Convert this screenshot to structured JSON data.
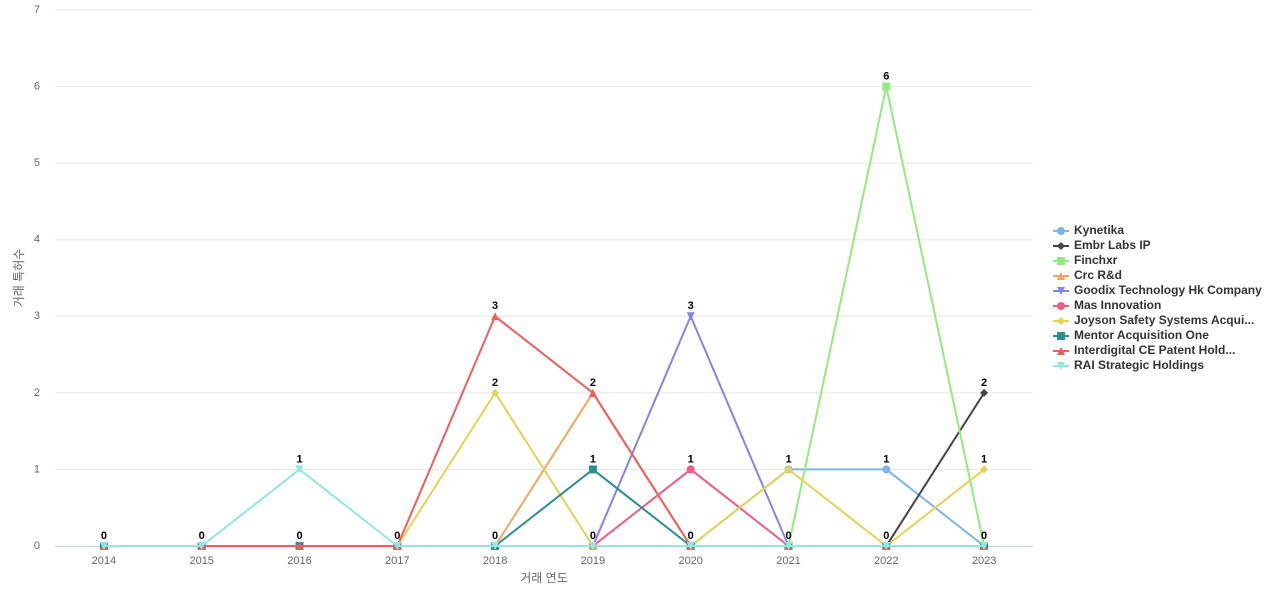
{
  "chart_data": {
    "type": "line",
    "x_label": "거래 연도",
    "y_label": "거래 특허수",
    "categories": [
      "2014",
      "2015",
      "2016",
      "2017",
      "2018",
      "2019",
      "2020",
      "2021",
      "2022",
      "2023"
    ],
    "ylim": [
      0,
      7
    ],
    "yticks": [
      0,
      1,
      2,
      3,
      4,
      5,
      6,
      7
    ],
    "grid": true,
    "legend": "right",
    "series": [
      {
        "name": "Kynetika",
        "color": "#7cb5ec",
        "values": [
          0,
          0,
          0,
          0,
          0,
          0,
          0,
          1,
          1,
          0
        ]
      },
      {
        "name": "Embr Labs IP",
        "color": "#434348",
        "values": [
          0,
          0,
          0,
          0,
          0,
          0,
          0,
          0,
          0,
          2
        ]
      },
      {
        "name": "Finchxr",
        "color": "#90ed7d",
        "values": [
          0,
          0,
          0,
          0,
          0,
          0,
          0,
          0,
          6,
          0
        ]
      },
      {
        "name": "Crc R&d",
        "color": "#f7a35c",
        "values": [
          0,
          0,
          0,
          0,
          0,
          2,
          0,
          0,
          0,
          0
        ]
      },
      {
        "name": "Goodix Technology Hk Company",
        "color": "#8085e9",
        "values": [
          0,
          0,
          0,
          0,
          0,
          0,
          3,
          0,
          0,
          0
        ]
      },
      {
        "name": "Mas Innovation",
        "color": "#f15c80",
        "values": [
          0,
          0,
          0,
          0,
          0,
          0,
          1,
          0,
          0,
          0
        ]
      },
      {
        "name": "Joyson Safety Systems Acqui...",
        "color": "#e4d354",
        "values": [
          0,
          0,
          0,
          0,
          2,
          0,
          0,
          1,
          0,
          1
        ]
      },
      {
        "name": "Mentor Acquisition One",
        "color": "#2b908f",
        "values": [
          0,
          0,
          0,
          0,
          0,
          1,
          0,
          0,
          0,
          0
        ]
      },
      {
        "name": "Interdigital CE Patent Hold...",
        "color": "#f45b5b",
        "values": [
          0,
          0,
          0,
          0,
          3,
          2,
          0,
          0,
          0,
          0
        ]
      },
      {
        "name": "RAI Strategic Holdings",
        "color": "#91e8e1",
        "values": [
          0,
          0,
          1,
          0,
          0,
          0,
          0,
          0,
          0,
          0
        ]
      }
    ]
  }
}
